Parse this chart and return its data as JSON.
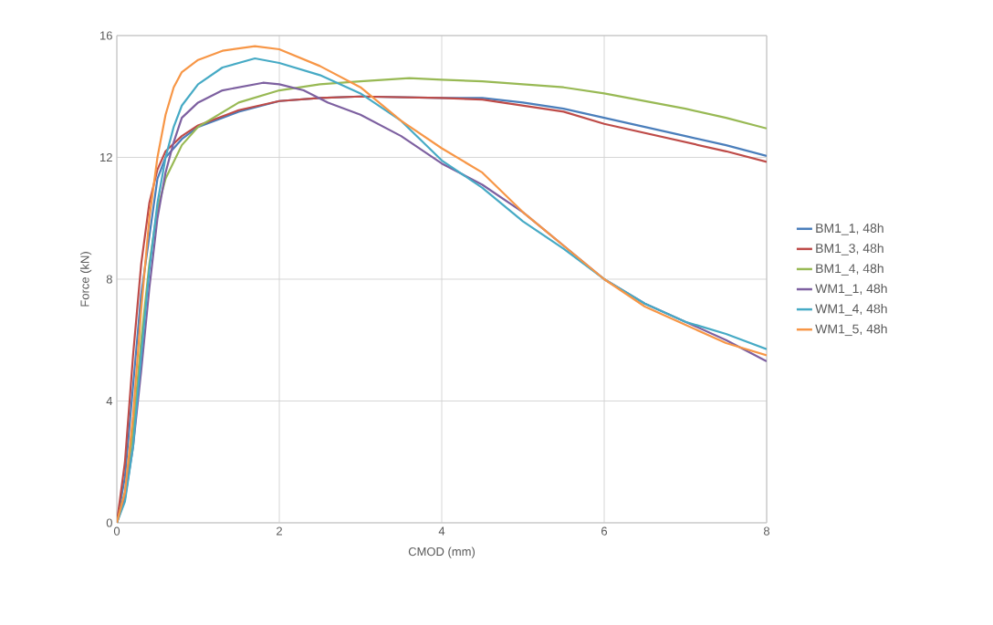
{
  "chart_data": {
    "type": "line",
    "xlabel": "CMOD (mm)",
    "ylabel": "Force (kN)",
    "xlim": [
      0,
      8
    ],
    "ylim": [
      0,
      16
    ],
    "xticks": [
      0,
      2,
      4,
      6,
      8
    ],
    "yticks": [
      0,
      4,
      8,
      12,
      16
    ],
    "grid": true,
    "legend": "right",
    "marker": "none",
    "line_style": "solid",
    "series": [
      {
        "name": "BM1_1, 48h",
        "color": "#4a7ebb",
        "x": [
          0,
          0.1,
          0.2,
          0.3,
          0.5,
          0.6,
          0.8,
          1,
          1.5,
          2,
          2.5,
          3,
          4,
          4.5,
          5,
          5.5,
          6,
          6.5,
          7,
          7.5,
          8
        ],
        "values": [
          0,
          1.5,
          4.5,
          7.5,
          11.3,
          12,
          12.6,
          13,
          13.5,
          13.85,
          13.95,
          14,
          13.95,
          13.95,
          13.8,
          13.6,
          13.3,
          13,
          12.7,
          12.4,
          12.05
        ]
      },
      {
        "name": "BM1_3, 48h",
        "color": "#be4b48",
        "x": [
          0,
          0.1,
          0.2,
          0.3,
          0.4,
          0.5,
          0.6,
          0.8,
          1,
          1.5,
          2,
          2.5,
          3,
          4,
          4.5,
          5,
          5.5,
          6,
          6.5,
          7,
          7.5,
          8
        ],
        "values": [
          0,
          2,
          5.5,
          8.5,
          10.5,
          11.6,
          12.2,
          12.7,
          13.05,
          13.55,
          13.85,
          13.95,
          14,
          13.95,
          13.9,
          13.7,
          13.5,
          13.1,
          12.8,
          12.5,
          12.2,
          11.85
        ]
      },
      {
        "name": "BM1_4, 48h",
        "color": "#98b954",
        "x": [
          0,
          0.1,
          0.2,
          0.3,
          0.4,
          0.5,
          0.6,
          0.8,
          1,
          1.5,
          2,
          2.5,
          3,
          3.6,
          4,
          4.5,
          5,
          5.5,
          6,
          6.5,
          7,
          7.5,
          8
        ],
        "values": [
          0,
          1,
          3,
          6,
          8.5,
          10.3,
          11.3,
          12.4,
          13,
          13.8,
          14.2,
          14.4,
          14.5,
          14.6,
          14.55,
          14.5,
          14.4,
          14.3,
          14.1,
          13.85,
          13.6,
          13.3,
          12.95
        ]
      },
      {
        "name": "WM1_1, 48h",
        "color": "#7d60a0",
        "x": [
          0,
          0.1,
          0.2,
          0.3,
          0.4,
          0.5,
          0.6,
          0.7,
          0.8,
          1,
          1.3,
          1.8,
          2,
          2.3,
          2.6,
          3,
          3.5,
          4,
          4.5,
          5,
          5.5,
          6,
          6.5,
          7,
          7.5,
          8
        ],
        "values": [
          0,
          0.8,
          2.5,
          5,
          7.7,
          10,
          11.5,
          12.5,
          13.3,
          13.8,
          14.2,
          14.45,
          14.4,
          14.2,
          13.8,
          13.4,
          12.7,
          11.8,
          11.1,
          10.2,
          9.1,
          8,
          7.2,
          6.6,
          6,
          5.3
        ]
      },
      {
        "name": "WM1_4, 48h",
        "color": "#46aac5",
        "x": [
          0,
          0.1,
          0.2,
          0.3,
          0.4,
          0.5,
          0.6,
          0.7,
          0.8,
          1,
          1.3,
          1.7,
          2,
          2.5,
          3,
          3.5,
          4,
          4.5,
          5,
          5.5,
          6,
          6.5,
          7,
          7.5,
          8
        ],
        "values": [
          0,
          0.7,
          2.5,
          5.5,
          8.3,
          10.5,
          12,
          13,
          13.7,
          14.4,
          14.95,
          15.25,
          15.1,
          14.7,
          14.1,
          13.2,
          11.9,
          11,
          9.9,
          9,
          8,
          7.2,
          6.6,
          6.2,
          5.7
        ]
      },
      {
        "name": "WM1_5, 48h",
        "color": "#f79646",
        "x": [
          0,
          0.1,
          0.2,
          0.3,
          0.4,
          0.5,
          0.6,
          0.7,
          0.8,
          1,
          1.3,
          1.7,
          2,
          2.5,
          3,
          3.5,
          4,
          4.5,
          5,
          5.5,
          6,
          6.5,
          7,
          7.5,
          8
        ],
        "values": [
          0,
          1,
          3.5,
          7,
          10,
          12,
          13.4,
          14.3,
          14.8,
          15.2,
          15.5,
          15.65,
          15.55,
          15,
          14.3,
          13.2,
          12.3,
          11.5,
          10.2,
          9.1,
          8,
          7.1,
          6.5,
          5.9,
          5.5
        ]
      }
    ]
  }
}
